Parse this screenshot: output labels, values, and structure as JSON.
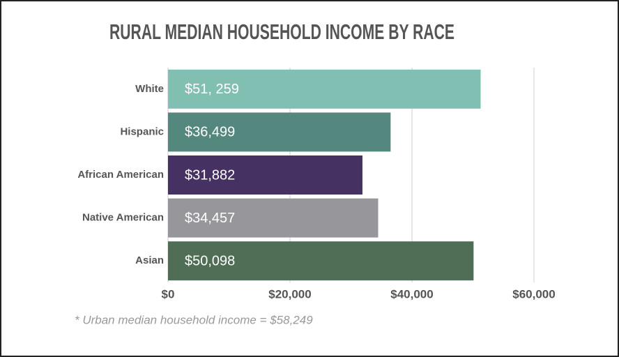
{
  "chart_data": {
    "type": "bar",
    "orientation": "horizontal",
    "title": "RURAL MEDIAN HOUSEHOLD INCOME BY RACE",
    "categories": [
      "White",
      "Hispanic",
      "African American",
      "Native American",
      "Asian"
    ],
    "values": [
      51259,
      36499,
      31882,
      34457,
      50098
    ],
    "value_labels": [
      "$51, 259",
      "$36,499",
      "$31,882",
      "$34,457",
      "$50,098"
    ],
    "colors": [
      "#82bfb3",
      "#54877d",
      "#453263",
      "#97979b",
      "#506d56"
    ],
    "xlim": [
      0,
      60000
    ],
    "xticks": [
      {
        "value": 0,
        "label": "$0"
      },
      {
        "value": 20000,
        "label": "$20,000"
      },
      {
        "value": 40000,
        "label": "$40,000"
      },
      {
        "value": 60000,
        "label": "$60,000"
      }
    ],
    "grid": true,
    "annotation": "* Urban median household income = $58,249"
  }
}
